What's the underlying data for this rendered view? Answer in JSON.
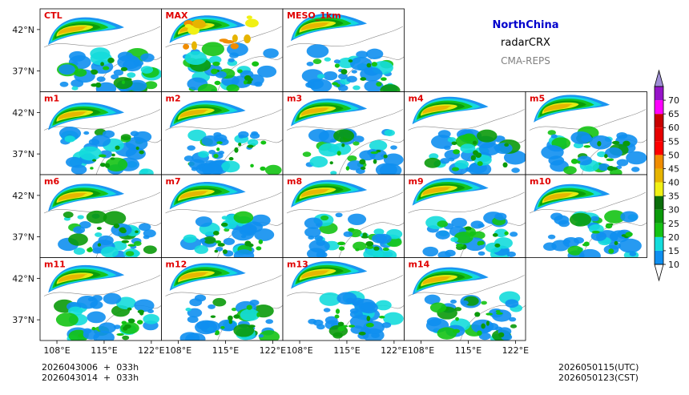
{
  "header": {
    "region": "NorthChina",
    "variable": "radarCRX",
    "source": "CMA-REPS",
    "region_color": "#0000cc",
    "source_color": "#808080"
  },
  "footer": {
    "init_utc": "2026043006  +  033h",
    "init_cst": "2026043014  +  033h",
    "valid_utc": "2026050115(UTC)",
    "valid_cst": "2026050123(CST)"
  },
  "chart_data": {
    "type": "heatmap",
    "title": "NorthChina radarCRX CMA-REPS",
    "panels": [
      "CTL",
      "MAX",
      "MESO_1km",
      "m1",
      "m2",
      "m3",
      "m4",
      "m5",
      "m6",
      "m7",
      "m8",
      "m9",
      "m10",
      "m11",
      "m12",
      "m13",
      "m14"
    ],
    "xlabel_ticks": [
      "108°E",
      "115°E",
      "122°E"
    ],
    "x_tick_values": [
      108,
      115,
      122
    ],
    "ylabel_ticks": [
      "42°N",
      "37°N"
    ],
    "y_tick_values": [
      42,
      37
    ],
    "xlim": [
      105.5,
      123.5
    ],
    "ylim": [
      34.5,
      44.5
    ],
    "colorbar": {
      "levels": [
        "10",
        "15",
        "20",
        "25",
        "30",
        "35",
        "40",
        "45",
        "50",
        "55",
        "60",
        "65",
        "70"
      ],
      "colors": [
        "#0f8ff0",
        "#14dcdc",
        "#14c314",
        "#0a9a0a",
        "#0a6e0a",
        "#f0f014",
        "#e6b400",
        "#f08c00",
        "#ff0000",
        "#e60000",
        "#c80000",
        "#ff00ff",
        "#9614c8",
        "#9f8fd6"
      ],
      "extend": "both"
    }
  }
}
